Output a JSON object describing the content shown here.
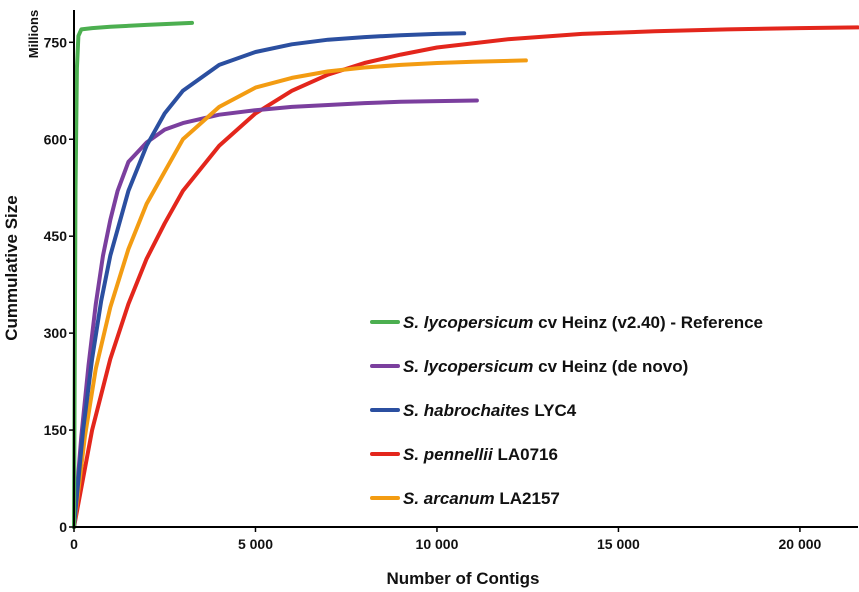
{
  "chart_data": {
    "type": "line",
    "units_label": "Millions",
    "xlabel": "Number of Contigs",
    "ylabel": "Cummulative Size",
    "xlim": [
      0,
      21600
    ],
    "ylim": [
      0,
      800
    ],
    "x_ticks": [
      {
        "value": 0,
        "label": "0"
      },
      {
        "value": 5000,
        "label": "5 000"
      },
      {
        "value": 10000,
        "label": "10 000"
      },
      {
        "value": 15000,
        "label": "15 000"
      },
      {
        "value": 20000,
        "label": "20 000"
      }
    ],
    "y_ticks": [
      {
        "value": 0,
        "label": "0"
      },
      {
        "value": 150,
        "label": "150"
      },
      {
        "value": 300,
        "label": "300"
      },
      {
        "value": 450,
        "label": "450"
      },
      {
        "value": 600,
        "label": "600"
      },
      {
        "value": 750,
        "label": "750"
      }
    ],
    "grid": false,
    "legend_position": "bottom-right",
    "series": [
      {
        "name": "S. lycopersicum cv Heinz (v2.40) - Reference",
        "name_italic": "S. lycopersicum",
        "name_rest": " cv Heinz (v2.40) - Reference",
        "color": "#4caf50",
        "points": [
          [
            0,
            0
          ],
          [
            40,
            520
          ],
          [
            80,
            710
          ],
          [
            120,
            760
          ],
          [
            200,
            770
          ],
          [
            500,
            772
          ],
          [
            1000,
            774
          ],
          [
            2000,
            777
          ],
          [
            3250,
            780
          ]
        ]
      },
      {
        "name": "S. lycopersicum cv Heinz (de novo)",
        "name_italic": "S. lycopersicum",
        "name_rest": " cv Heinz (de novo)",
        "color": "#7b3f9e",
        "points": [
          [
            0,
            0
          ],
          [
            200,
            140
          ],
          [
            400,
            250
          ],
          [
            600,
            345
          ],
          [
            800,
            420
          ],
          [
            1000,
            475
          ],
          [
            1200,
            520
          ],
          [
            1500,
            565
          ],
          [
            2000,
            595
          ],
          [
            2500,
            615
          ],
          [
            3000,
            625
          ],
          [
            4000,
            638
          ],
          [
            5000,
            645
          ],
          [
            6000,
            650
          ],
          [
            7000,
            653
          ],
          [
            8000,
            656
          ],
          [
            9000,
            658
          ],
          [
            10000,
            659
          ],
          [
            11100,
            660
          ]
        ]
      },
      {
        "name": "S. habrochaites LYC4",
        "name_italic": "S. habrochaites",
        "name_rest": " LYC4",
        "color": "#2b4fa0",
        "points": [
          [
            0,
            0
          ],
          [
            250,
            150
          ],
          [
            500,
            260
          ],
          [
            750,
            350
          ],
          [
            1000,
            420
          ],
          [
            1500,
            520
          ],
          [
            2000,
            590
          ],
          [
            2500,
            640
          ],
          [
            3000,
            675
          ],
          [
            4000,
            715
          ],
          [
            5000,
            735
          ],
          [
            6000,
            747
          ],
          [
            7000,
            754
          ],
          [
            8000,
            758
          ],
          [
            9000,
            761
          ],
          [
            10000,
            763
          ],
          [
            10750,
            764
          ]
        ]
      },
      {
        "name": "S. pennellii LA0716",
        "name_italic": "S. pennellii",
        "name_rest": " LA0716",
        "color": "#e3261c",
        "points": [
          [
            0,
            0
          ],
          [
            500,
            150
          ],
          [
            1000,
            260
          ],
          [
            1500,
            345
          ],
          [
            2000,
            415
          ],
          [
            2500,
            470
          ],
          [
            3000,
            520
          ],
          [
            4000,
            590
          ],
          [
            5000,
            640
          ],
          [
            6000,
            675
          ],
          [
            7000,
            700
          ],
          [
            8000,
            718
          ],
          [
            9000,
            731
          ],
          [
            10000,
            742
          ],
          [
            12000,
            755
          ],
          [
            14000,
            763
          ],
          [
            16000,
            767
          ],
          [
            18000,
            770
          ],
          [
            20000,
            772
          ],
          [
            21600,
            773
          ]
        ]
      },
      {
        "name": "S. arcanum LA2157",
        "name_italic": "S. arcanum",
        "name_rest": " LA2157",
        "color": "#f39c12",
        "points": [
          [
            0,
            0
          ],
          [
            300,
            140
          ],
          [
            600,
            245
          ],
          [
            1000,
            340
          ],
          [
            1500,
            430
          ],
          [
            2000,
            500
          ],
          [
            2500,
            550
          ],
          [
            3000,
            600
          ],
          [
            4000,
            650
          ],
          [
            5000,
            680
          ],
          [
            6000,
            695
          ],
          [
            7000,
            705
          ],
          [
            8000,
            711
          ],
          [
            9000,
            715
          ],
          [
            10000,
            718
          ],
          [
            11000,
            720
          ],
          [
            12450,
            722
          ]
        ]
      }
    ]
  }
}
